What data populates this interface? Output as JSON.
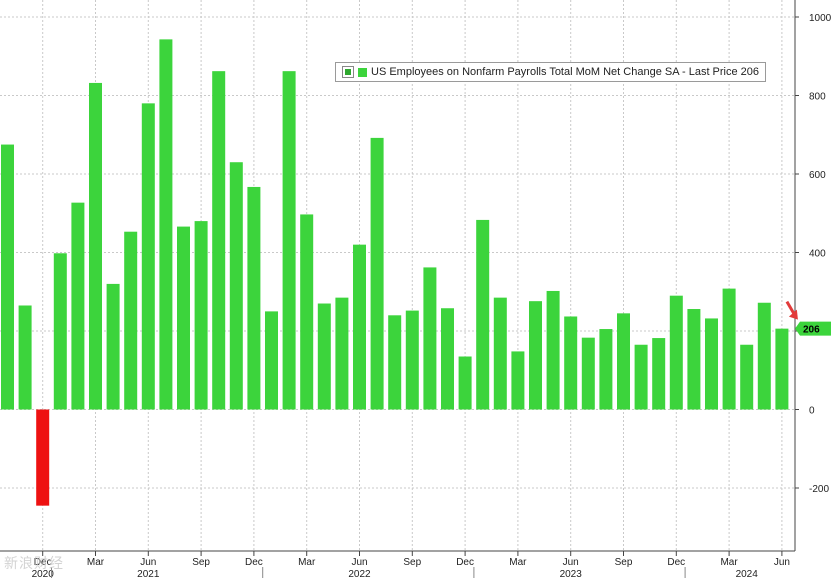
{
  "legend": {
    "label": "US Employees on Nonfarm Payrolls Total MoM Net Change SA - Last Price 206",
    "color": "#3cd43c"
  },
  "last_price_tag": "206",
  "watermark": "新浪财经",
  "colors": {
    "positive_bar": "#3cd43c",
    "negative_bar": "#ee1111",
    "grid": "#c9c9c9",
    "arrow": "#e23b3b",
    "tag_bg": "#3cd43c"
  },
  "chart_data": {
    "type": "bar",
    "title": "",
    "xlabel": "",
    "ylabel": "",
    "ylim": [
      -300,
      1000
    ],
    "y_ticks": [
      -200,
      0,
      200,
      400,
      600,
      800,
      1000
    ],
    "grid": true,
    "legend_position": "top-right",
    "x_month_labels": [
      "Dec",
      "Mar",
      "Jun",
      "Sep",
      "Dec",
      "Mar",
      "Jun",
      "Sep",
      "Dec",
      "Mar",
      "Jun",
      "Sep",
      "Dec",
      "Mar",
      "Jun"
    ],
    "x_year_labels": [
      "2020",
      "2021",
      "2022",
      "2023",
      "2024"
    ],
    "series": [
      {
        "name": "US Employees on Nonfarm Payrolls Total MoM Net Change SA",
        "values": [
          675,
          265,
          -245,
          398,
          527,
          832,
          320,
          453,
          780,
          943,
          466,
          480,
          862,
          630,
          567,
          250,
          862,
          497,
          270,
          285,
          420,
          692,
          240,
          252,
          362,
          258,
          135,
          483,
          285,
          148,
          276,
          302,
          237,
          183,
          205,
          245,
          165,
          182,
          290,
          256,
          232,
          308,
          165,
          272,
          206
        ]
      }
    ]
  }
}
